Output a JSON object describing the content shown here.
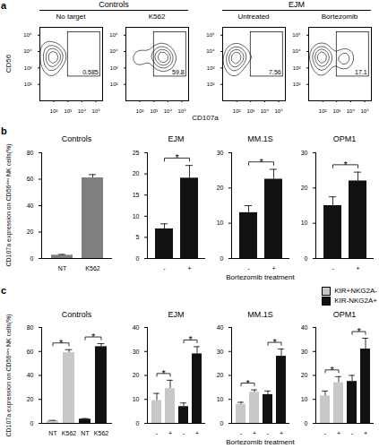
{
  "chart_data": [
    {
      "panel": "a",
      "type": "contour",
      "xlabel": "CD107a",
      "ylabel": "CD56",
      "log": true,
      "xlim": [
        10,
        300000
      ],
      "ylim": [
        10,
        300000
      ],
      "xticks": [
        {
          "value": 100,
          "label": "10²"
        },
        {
          "value": 1000,
          "label": "10³"
        },
        {
          "value": 10000,
          "label": "10⁴"
        },
        {
          "value": 100000,
          "label": "10⁵"
        }
      ],
      "yticks": [
        {
          "value": 100,
          "label": "10²"
        },
        {
          "value": 1000,
          "label": "10³"
        },
        {
          "value": 10000,
          "label": "10⁴"
        },
        {
          "value": 100000,
          "label": "10⁵"
        }
      ],
      "groups": [
        {
          "title": "Controls",
          "plots": [
            {
              "title": "No target",
              "gate_x": [
                1000,
                200000
              ],
              "gate_y": [
                300,
                150000
              ],
              "gate_percent": 0.585,
              "events": [
                [
                  50,
                  3000
                ],
                [
                  80,
                  5000
                ],
                [
                  120,
                  2500
                ],
                [
                  60,
                  8000
                ],
                [
                  150,
                  4000
                ],
                [
                  40,
                  1500
                ],
                [
                  100,
                  12000
                ],
                [
                  200,
                  6000
                ],
                [
                  70,
                  600
                ],
                [
                  30,
                  20000
                ]
              ]
            },
            {
              "title": "K562",
              "gate_x": [
                1000,
                200000
              ],
              "gate_y": [
                300,
                150000
              ],
              "gate_percent": 59.8,
              "events": [
                [
                  2000,
                  4000
                ],
                [
                  5000,
                  6000
                ],
                [
                  3000,
                  2500
                ],
                [
                  8000,
                  3500
                ],
                [
                  1500,
                  8000
                ],
                [
                  10000,
                  5000
                ],
                [
                  4000,
                  12000
                ],
                [
                  80,
                  3000
                ],
                [
                  120,
                  6000
                ],
                [
                  6000,
                  1500
                ]
              ]
            }
          ]
        },
        {
          "title": "EJM",
          "plots": [
            {
              "title": "Untreated",
              "gate_x": [
                1000,
                200000
              ],
              "gate_y": [
                300,
                150000
              ],
              "gate_percent": 7.56,
              "events": [
                [
                  50,
                  3000
                ],
                [
                  80,
                  5000
                ],
                [
                  120,
                  2500
                ],
                [
                  60,
                  8000
                ],
                [
                  150,
                  4000
                ],
                [
                  40,
                  1500
                ],
                [
                  100,
                  12000
                ],
                [
                  200,
                  6000
                ],
                [
                  3000,
                  4000
                ],
                [
                  70,
                  600
                ]
              ]
            },
            {
              "title": "Bortezomib",
              "gate_x": [
                1000,
                200000
              ],
              "gate_y": [
                300,
                150000
              ],
              "gate_percent": 17.1,
              "events": [
                [
                  50,
                  3000
                ],
                [
                  80,
                  5000
                ],
                [
                  120,
                  2500
                ],
                [
                  60,
                  8000
                ],
                [
                  150,
                  4000
                ],
                [
                  100,
                  12000
                ],
                [
                  2500,
                  4000
                ],
                [
                  5000,
                  6000
                ],
                [
                  3500,
                  2000
                ],
                [
                  70,
                  700
                ]
              ]
            }
          ]
        }
      ]
    },
    {
      "panel": "b",
      "type": "bar",
      "ylabel": "CD107a expression on CD56ᵈⁱᵐ NK cells(%)",
      "xlabel": "Bortezomib treatment",
      "subplots": [
        {
          "title": "Controls",
          "categories": [
            "NT",
            "K562"
          ],
          "values": [
            2.5,
            61
          ],
          "errors": [
            0.6,
            2.5
          ],
          "color": "#7f7f7f",
          "ylim": [
            0,
            80
          ],
          "yticks": [
            0,
            20,
            40,
            60,
            80
          ]
        },
        {
          "title": "EJM",
          "categories": [
            "-",
            "+"
          ],
          "values": [
            7,
            19
          ],
          "errors": [
            1.2,
            3
          ],
          "color": "#111111",
          "ylim": [
            0,
            25
          ],
          "yticks": [
            0,
            5,
            10,
            15,
            20,
            25
          ],
          "significance": [
            {
              "from": 0,
              "to": 1,
              "label": "*"
            }
          ]
        },
        {
          "title": "MM.1S",
          "categories": [
            "-",
            "+"
          ],
          "values": [
            13,
            22.5
          ],
          "errors": [
            2,
            2.8
          ],
          "color": "#111111",
          "ylim": [
            0,
            30
          ],
          "yticks": [
            0,
            10,
            20,
            30
          ],
          "significance": [
            {
              "from": 0,
              "to": 1,
              "label": "*"
            }
          ]
        },
        {
          "title": "OPM1",
          "categories": [
            "-",
            "+"
          ],
          "values": [
            15,
            22
          ],
          "errors": [
            2.5,
            2.5
          ],
          "color": "#111111",
          "ylim": [
            0,
            30
          ],
          "yticks": [
            0,
            10,
            20,
            30
          ],
          "significance": [
            {
              "from": 0,
              "to": 1,
              "label": "*"
            }
          ]
        }
      ]
    },
    {
      "panel": "c",
      "type": "grouped_bar",
      "ylabel": "CD107a expression on CD56ᵈⁱᵐ NK cells(%)",
      "xlabel": "Bortezomib treatment",
      "legend": "top-right",
      "subplots": [
        {
          "title": "Controls",
          "categories": [
            "NT",
            "K562"
          ],
          "ylim": [
            0,
            80
          ],
          "yticks": [
            0,
            20,
            40,
            60,
            80
          ],
          "series": [
            {
              "name": "KIR+NKG2A-",
              "color": "#c8c8c8",
              "values": [
                2,
                59
              ],
              "errors": [
                0.5,
                2.5
              ]
            },
            {
              "name": "KIR-NKG2A+",
              "color": "#111111",
              "values": [
                3.5,
                64
              ],
              "errors": [
                0.5,
                2.5
              ]
            }
          ],
          "significance": [
            {
              "series": 0,
              "from": 0,
              "to": 1,
              "label": "*"
            },
            {
              "series": 1,
              "from": 0,
              "to": 1,
              "label": "*"
            }
          ]
        },
        {
          "title": "EJM",
          "categories": [
            "-",
            "+"
          ],
          "ylim": [
            0,
            40
          ],
          "yticks": [
            0,
            10,
            20,
            30,
            40
          ],
          "series": [
            {
              "name": "KIR+NKG2A-",
              "color": "#c8c8c8",
              "values": [
                9.5,
                14.5
              ],
              "errors": [
                3,
                3.5
              ]
            },
            {
              "name": "KIR-NKG2A+",
              "color": "#111111",
              "values": [
                7,
                29
              ],
              "errors": [
                1.5,
                3
              ]
            }
          ],
          "significance": [
            {
              "series": 0,
              "from": 0,
              "to": 1,
              "label": "*"
            },
            {
              "series": 1,
              "from": 0,
              "to": 1,
              "label": "*"
            }
          ]
        },
        {
          "title": "MM.1S",
          "categories": [
            "-",
            "+"
          ],
          "ylim": [
            0,
            40
          ],
          "yticks": [
            0,
            10,
            20,
            30,
            40
          ],
          "series": [
            {
              "name": "KIR+NKG2A-",
              "color": "#c8c8c8",
              "values": [
                8,
                13
              ],
              "errors": [
                0.8,
                1
              ]
            },
            {
              "name": "KIR-NKG2A+",
              "color": "#111111",
              "values": [
                12,
                28
              ],
              "errors": [
                1.5,
                3
              ]
            }
          ],
          "significance": [
            {
              "series": 0,
              "from": 0,
              "to": 1,
              "label": "*"
            },
            {
              "series": 1,
              "from": 0,
              "to": 1,
              "label": "*"
            }
          ]
        },
        {
          "title": "OPM1",
          "categories": [
            "-",
            "+"
          ],
          "ylim": [
            0,
            40
          ],
          "yticks": [
            0,
            10,
            20,
            30,
            40
          ],
          "series": [
            {
              "name": "KIR+NKG2A-",
              "color": "#c8c8c8",
              "values": [
                11.5,
                17
              ],
              "errors": [
                2,
                2.5
              ]
            },
            {
              "name": "KIR-NKG2A+",
              "color": "#111111",
              "values": [
                17.5,
                31
              ],
              "errors": [
                2.5,
                4.5
              ]
            }
          ],
          "significance": [
            {
              "series": 0,
              "from": 0,
              "to": 1,
              "label": "*"
            },
            {
              "series": 1,
              "from": 0,
              "to": 1,
              "label": "*"
            }
          ]
        }
      ]
    }
  ]
}
